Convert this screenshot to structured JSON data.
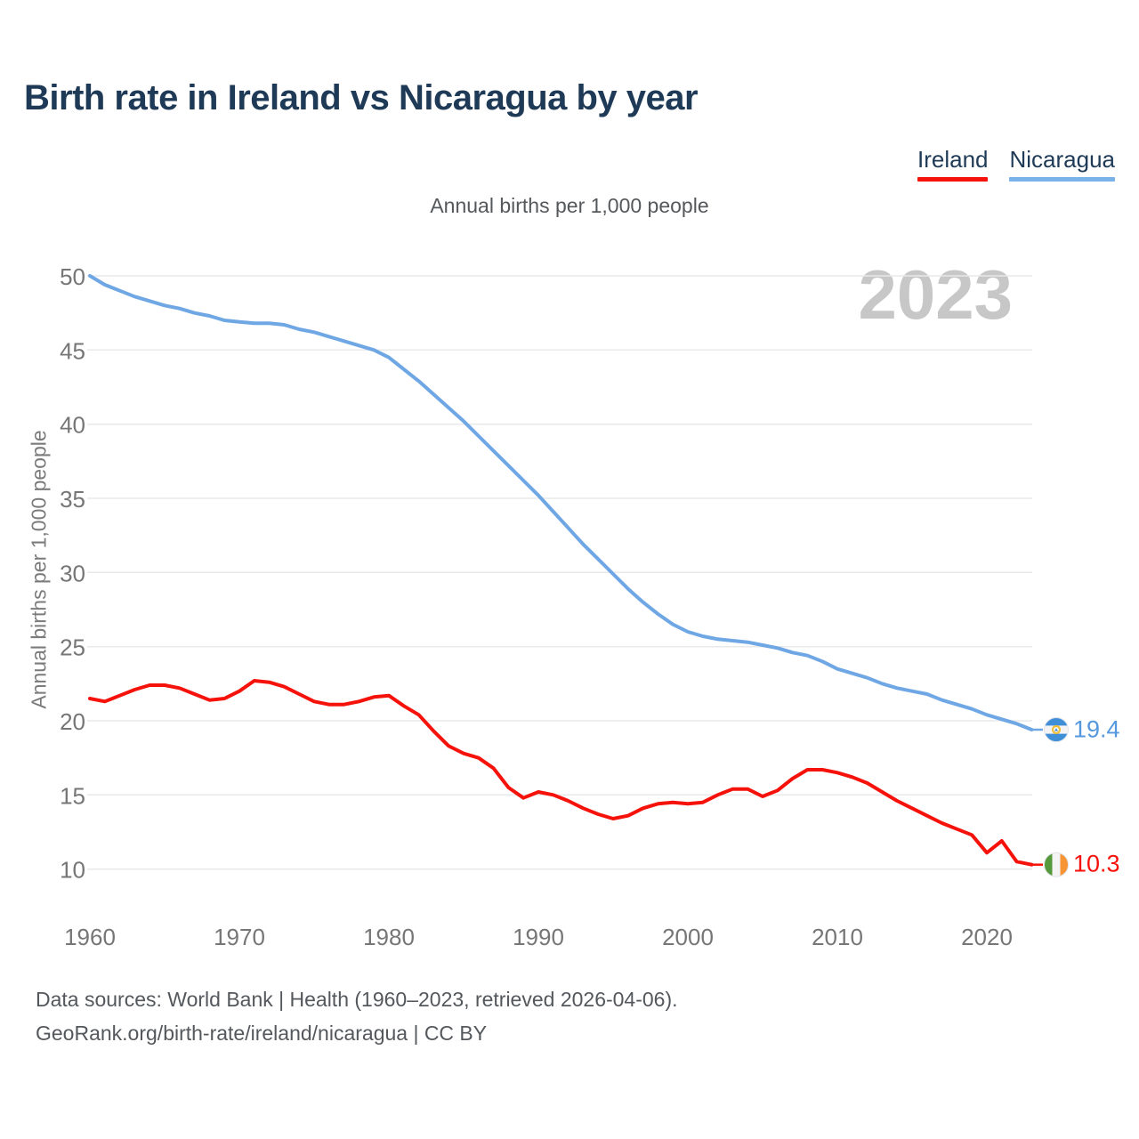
{
  "title": "Birth rate in Ireland vs Nicaragua by year",
  "subtitle": "Annual births per 1,000 people",
  "watermark": "2023",
  "legend": [
    {
      "label": "Ireland",
      "color": "#f5120b"
    },
    {
      "label": "Nicaragua",
      "color": "#79b2e9"
    }
  ],
  "end_labels": {
    "nicaragua": "19.4",
    "ireland": "10.3"
  },
  "footer": {
    "line1": "Data sources: World Bank | Health (1960–2023, retrieved 2026-04-06).",
    "line2": "GeoRank.org/birth-rate/ireland/nicaragua | CC BY"
  },
  "icons": {
    "ireland_flag": "ireland-flag-icon",
    "nicaragua_flag": "nicaragua-flag-icon"
  },
  "colors": {
    "ireland_line": "#f5120b",
    "nicaragua_line": "#6fa7e5",
    "grid": "#e9e9e9",
    "tick_text": "#767676",
    "title_text": "#1e3a56"
  },
  "chart_data": {
    "type": "line",
    "title": "Birth rate in Ireland vs Nicaragua by year",
    "subtitle": "Annual births per 1,000 people",
    "ylabel": "Annual births per 1,000 people",
    "xlabel": "",
    "ylim": [
      10,
      50
    ],
    "yticks": [
      10,
      15,
      20,
      25,
      30,
      35,
      40,
      45,
      50
    ],
    "xticks": [
      1960,
      1970,
      1980,
      1990,
      2000,
      2010,
      2020
    ],
    "grid": true,
    "legend_position": "top-right",
    "watermark": "2023",
    "x": [
      1960,
      1961,
      1962,
      1963,
      1964,
      1965,
      1966,
      1967,
      1968,
      1969,
      1970,
      1971,
      1972,
      1973,
      1974,
      1975,
      1976,
      1977,
      1978,
      1979,
      1980,
      1981,
      1982,
      1983,
      1984,
      1985,
      1986,
      1987,
      1988,
      1989,
      1990,
      1991,
      1992,
      1993,
      1994,
      1995,
      1996,
      1997,
      1998,
      1999,
      2000,
      2001,
      2002,
      2003,
      2004,
      2005,
      2006,
      2007,
      2008,
      2009,
      2010,
      2011,
      2012,
      2013,
      2014,
      2015,
      2016,
      2017,
      2018,
      2019,
      2020,
      2021,
      2022,
      2023
    ],
    "series": [
      {
        "name": "Ireland",
        "color": "#f5120b",
        "end_value_label": "10.3",
        "values": [
          21.5,
          21.3,
          21.7,
          22.1,
          22.4,
          22.4,
          22.2,
          21.8,
          21.4,
          21.5,
          22.0,
          22.7,
          22.6,
          22.3,
          21.8,
          21.3,
          21.1,
          21.1,
          21.3,
          21.6,
          21.7,
          21.0,
          20.4,
          19.3,
          18.3,
          17.8,
          17.5,
          16.8,
          15.5,
          14.8,
          15.2,
          15.0,
          14.6,
          14.1,
          13.7,
          13.4,
          13.6,
          14.1,
          14.4,
          14.5,
          14.4,
          14.5,
          15.0,
          15.4,
          15.4,
          14.9,
          15.3,
          16.1,
          16.7,
          16.7,
          16.5,
          16.2,
          15.8,
          15.2,
          14.6,
          14.1,
          13.6,
          13.1,
          12.7,
          12.3,
          11.1,
          11.9,
          10.5,
          10.3
        ]
      },
      {
        "name": "Nicaragua",
        "color": "#6fa7e5",
        "end_value_label": "19.4",
        "values": [
          50.0,
          49.4,
          49.0,
          48.6,
          48.3,
          48.0,
          47.8,
          47.5,
          47.3,
          47.0,
          46.9,
          46.8,
          46.8,
          46.7,
          46.4,
          46.2,
          45.9,
          45.6,
          45.3,
          45.0,
          44.5,
          43.7,
          42.9,
          42.0,
          41.1,
          40.2,
          39.2,
          38.2,
          37.2,
          36.2,
          35.2,
          34.1,
          33.0,
          31.9,
          30.9,
          29.9,
          28.9,
          28.0,
          27.2,
          26.5,
          26.0,
          25.7,
          25.5,
          25.4,
          25.3,
          25.1,
          24.9,
          24.6,
          24.4,
          24.0,
          23.5,
          23.2,
          22.9,
          22.5,
          22.2,
          22.0,
          21.8,
          21.4,
          21.1,
          20.8,
          20.4,
          20.1,
          19.8,
          19.4
        ]
      }
    ]
  }
}
